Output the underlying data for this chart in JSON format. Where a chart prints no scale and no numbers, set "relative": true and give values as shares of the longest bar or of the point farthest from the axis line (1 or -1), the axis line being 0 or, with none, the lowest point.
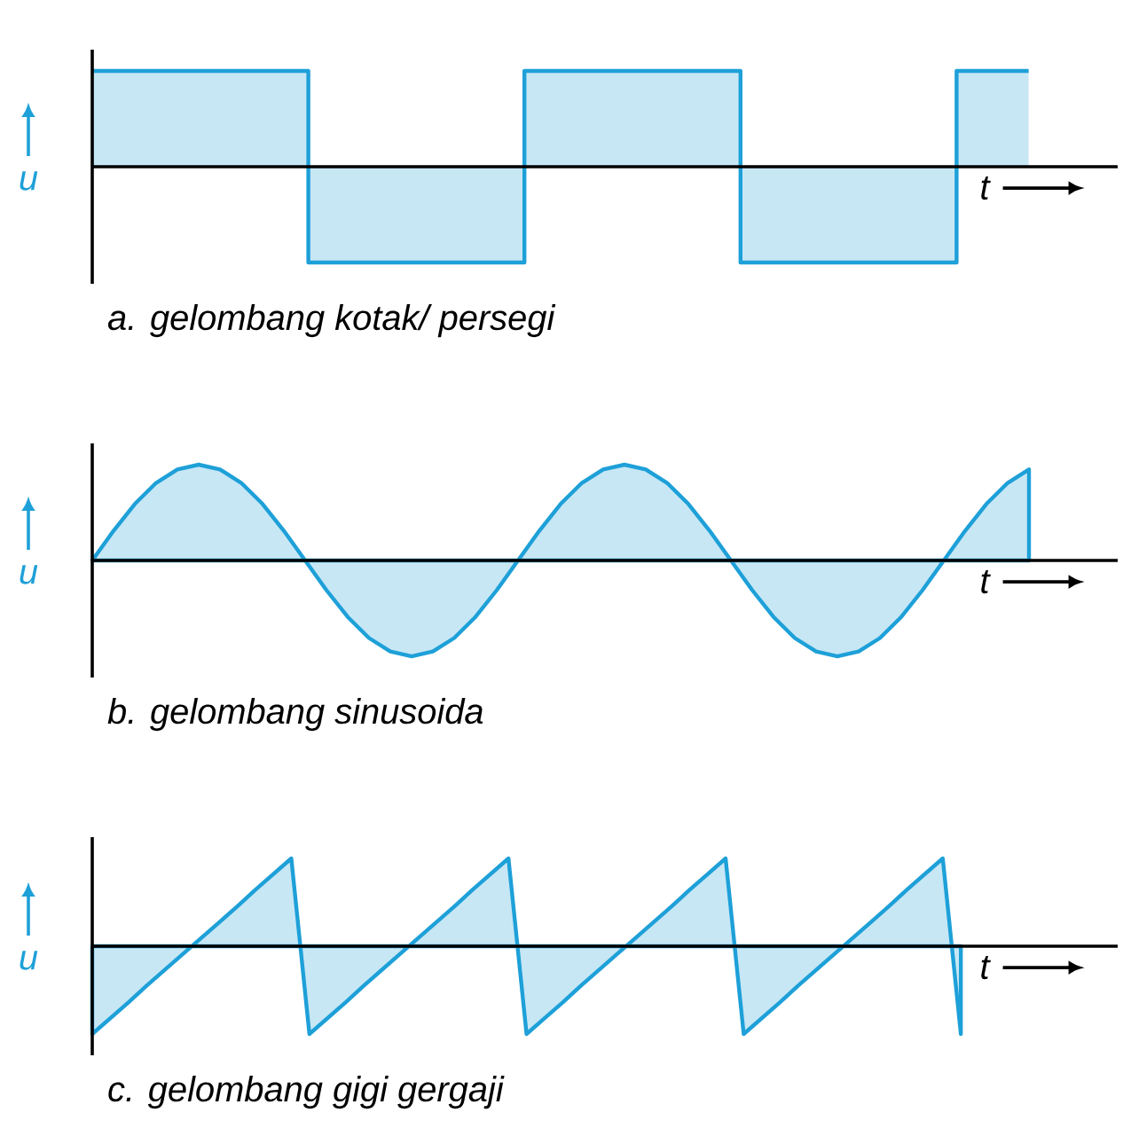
{
  "chart_data": [
    {
      "type": "step",
      "title": "a. gelombang kotak/ persegi",
      "xlabel": "t",
      "ylabel": "u",
      "relative": true,
      "color": "#1ea0d8",
      "categories": [
        null,
        null,
        null,
        null,
        null,
        null,
        null,
        null,
        null,
        null,
        null,
        null,
        null,
        null,
        null,
        null,
        null,
        null,
        null,
        null,
        null,
        null,
        null,
        null,
        null,
        null,
        null
      ],
      "values": [
        1,
        1,
        1,
        1,
        1,
        1,
        -1,
        -1,
        -1,
        -1,
        -1,
        -1,
        1,
        1,
        1,
        1,
        1,
        1,
        -1,
        -1,
        -1,
        -1,
        -1,
        -1,
        1,
        1,
        1
      ]
    },
    {
      "type": "area",
      "title": "b. gelombang sinusoida",
      "xlabel": "t",
      "ylabel": "u",
      "relative": true,
      "color": "#1ea0d8",
      "categories": [
        null,
        null,
        null,
        null,
        null,
        null,
        null,
        null,
        null,
        null,
        null,
        null,
        null,
        null,
        null,
        null,
        null,
        null,
        null,
        null,
        null,
        null,
        null,
        null,
        null,
        null,
        null,
        null,
        null,
        null,
        null,
        null,
        null,
        null,
        null,
        null,
        null,
        null,
        null,
        null,
        null,
        null,
        null,
        null,
        null
      ],
      "values": [
        0,
        0.31,
        0.59,
        0.81,
        0.95,
        1,
        0.95,
        0.81,
        0.59,
        0.31,
        0,
        -0.31,
        -0.59,
        -0.81,
        -0.95,
        -1,
        -0.95,
        -0.81,
        -0.59,
        -0.31,
        0,
        0.31,
        0.59,
        0.81,
        0.95,
        1,
        0.95,
        0.81,
        0.59,
        0.31,
        0,
        -0.31,
        -0.59,
        -0.81,
        -0.95,
        -1,
        -0.95,
        -0.81,
        -0.59,
        -0.31,
        0,
        0.31,
        0.59,
        0.81,
        0.95
      ]
    },
    {
      "type": "area",
      "title": "c. gelombang gigi gergaji",
      "xlabel": "t",
      "ylabel": "u",
      "relative": true,
      "color": "#1ea0d8",
      "categories": [
        null,
        null,
        null,
        null,
        null,
        null,
        null,
        null,
        null,
        null,
        null,
        null,
        null,
        null,
        null,
        null,
        null,
        null,
        null,
        null,
        null,
        null,
        null,
        null,
        null,
        null,
        null,
        null,
        null,
        null,
        null,
        null,
        null,
        null,
        null,
        null,
        null,
        null,
        null,
        null,
        null,
        null,
        null,
        null,
        null,
        null,
        null,
        null,
        null
      ],
      "values": [
        -1,
        -0.82,
        -0.64,
        -0.45,
        -0.27,
        -0.09,
        0.09,
        0.27,
        0.45,
        0.64,
        0.82,
        1,
        -1,
        -0.82,
        -0.64,
        -0.45,
        -0.27,
        -0.09,
        0.09,
        0.27,
        0.45,
        0.64,
        0.82,
        1,
        -1,
        -0.82,
        -0.64,
        -0.45,
        -0.27,
        -0.09,
        0.09,
        0.27,
        0.45,
        0.64,
        0.82,
        1,
        -1,
        -0.82,
        -0.64,
        -0.45,
        -0.27,
        -0.09,
        0.09,
        0.27,
        0.45,
        0.64,
        0.82,
        1,
        -1
      ]
    }
  ]
}
